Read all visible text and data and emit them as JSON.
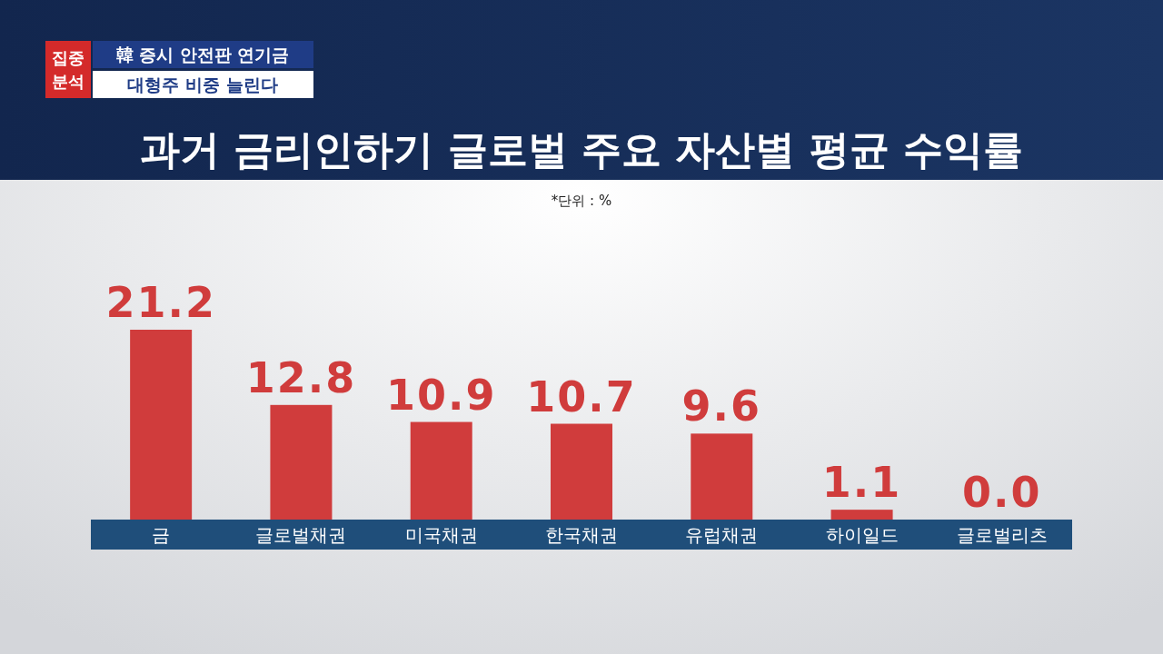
{
  "chart_data": {
    "type": "bar",
    "title": "과거 금리인하기 글로벌 주요 자산별 평균 수익률",
    "subtitle": "*단위 : %",
    "annotations": [
      "집중 분석",
      "韓 증시 안전판 연기금",
      "대형주 비중 늘린다"
    ],
    "categories": [
      "금",
      "글로벌채권",
      "미국채권",
      "한국채권",
      "유럽채권",
      "하이일드",
      "글로벌리츠"
    ],
    "values": [
      21.2,
      12.8,
      10.9,
      10.7,
      9.6,
      1.1,
      0.0
    ],
    "value_labels": [
      "21.2",
      "12.8",
      "10.9",
      "10.7",
      "9.6",
      "1.1",
      "0.0"
    ],
    "color": "#d03c3c"
  }
}
